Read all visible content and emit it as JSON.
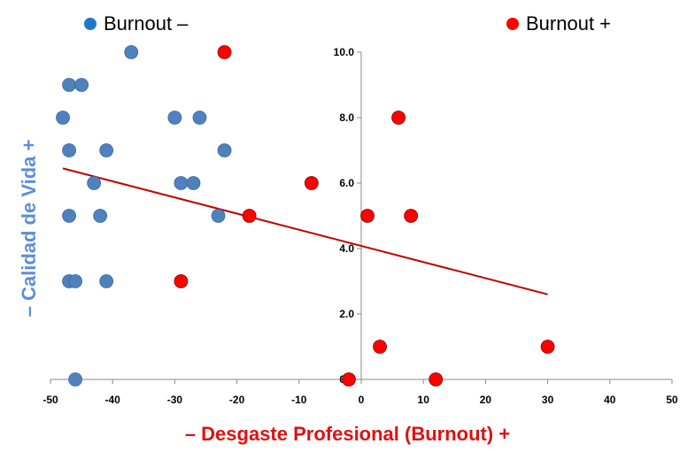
{
  "chart_data": {
    "type": "scatter",
    "title": "",
    "xlabel": "– Desgaste Profesional (Burnout) +",
    "ylabel": "– Calidad de Vida +",
    "xlim": [
      -50,
      50
    ],
    "ylim": [
      0,
      10
    ],
    "x_ticks": [
      "-50",
      "-40",
      "-30",
      "-20",
      "-10",
      "0",
      "10",
      "20",
      "30",
      "40",
      "50"
    ],
    "y_ticks": [
      "0.0",
      "2.0",
      "4.0",
      "6.0",
      "8.0",
      "10.0"
    ],
    "legend_position": "top",
    "grid": false,
    "series": [
      {
        "name": "Burnout –",
        "color": "#4f81bd",
        "points": [
          [
            -37,
            10
          ],
          [
            -47,
            9
          ],
          [
            -45,
            9
          ],
          [
            -48,
            8
          ],
          [
            -30,
            8
          ],
          [
            -26,
            8
          ],
          [
            -47,
            7
          ],
          [
            -41,
            7
          ],
          [
            -22,
            7
          ],
          [
            -43,
            6
          ],
          [
            -29,
            6
          ],
          [
            -27,
            6
          ],
          [
            -47,
            5
          ],
          [
            -42,
            5
          ],
          [
            -23,
            5
          ],
          [
            -47,
            3
          ],
          [
            -46,
            3
          ],
          [
            -41,
            3
          ],
          [
            -46,
            0
          ]
        ]
      },
      {
        "name": "Burnout +",
        "color": "#ff0000",
        "points": [
          [
            -22,
            10
          ],
          [
            6,
            8
          ],
          [
            -8,
            6
          ],
          [
            -18,
            5
          ],
          [
            1,
            5
          ],
          [
            8,
            5
          ],
          [
            -29,
            3
          ],
          [
            3,
            1
          ],
          [
            30,
            1
          ],
          [
            -2,
            0
          ],
          [
            12,
            0
          ]
        ]
      }
    ],
    "trendline": {
      "color": "#c00000",
      "from": [
        -48,
        6.45
      ],
      "to": [
        30,
        2.6
      ]
    }
  }
}
